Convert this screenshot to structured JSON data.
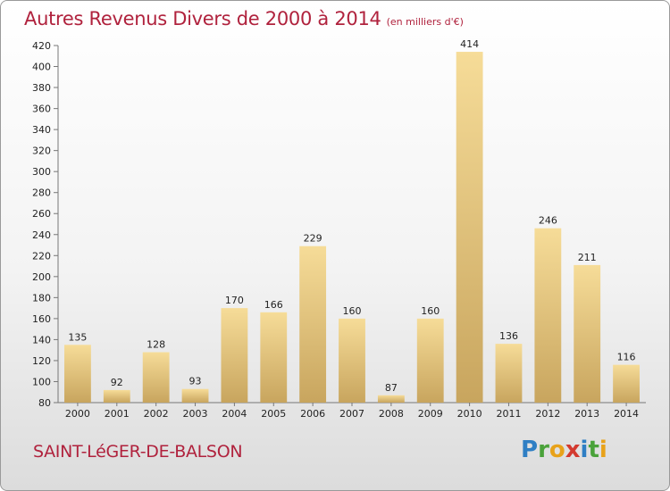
{
  "header": {
    "title": "Autres Revenus Divers de 2000 à 2014",
    "subtitle": "(en milliers d'€)"
  },
  "footer": {
    "place": "SAINT-LéGER-DE-BALSON",
    "brand_letters": [
      "P",
      "r",
      "o",
      "x",
      "i",
      "t",
      "i"
    ],
    "brand_colors": [
      "#2f7fc4",
      "#4aa23a",
      "#e8a21a",
      "#d33a2f",
      "#2f7fc4",
      "#4aa23a",
      "#e8a21a"
    ]
  },
  "chart_data": {
    "type": "bar",
    "title": "Autres Revenus Divers de 2000 à 2014",
    "subtitle": "(en milliers d'€)",
    "categories": [
      "2000",
      "2001",
      "2002",
      "2003",
      "2004",
      "2005",
      "2006",
      "2007",
      "2008",
      "2009",
      "2010",
      "2011",
      "2012",
      "2013",
      "2014"
    ],
    "values": [
      135,
      92,
      128,
      93,
      170,
      166,
      229,
      160,
      87,
      160,
      414,
      136,
      246,
      211,
      116
    ],
    "ylim": [
      80,
      420
    ],
    "yticks": [
      80,
      100,
      120,
      140,
      160,
      180,
      200,
      220,
      240,
      260,
      280,
      300,
      320,
      340,
      360,
      380,
      400,
      420
    ],
    "grid": false,
    "legend": "none",
    "colors": {
      "bar_light": "#f6dc98",
      "bar_dark": "#c8a55e",
      "text": "#b0223d"
    }
  }
}
